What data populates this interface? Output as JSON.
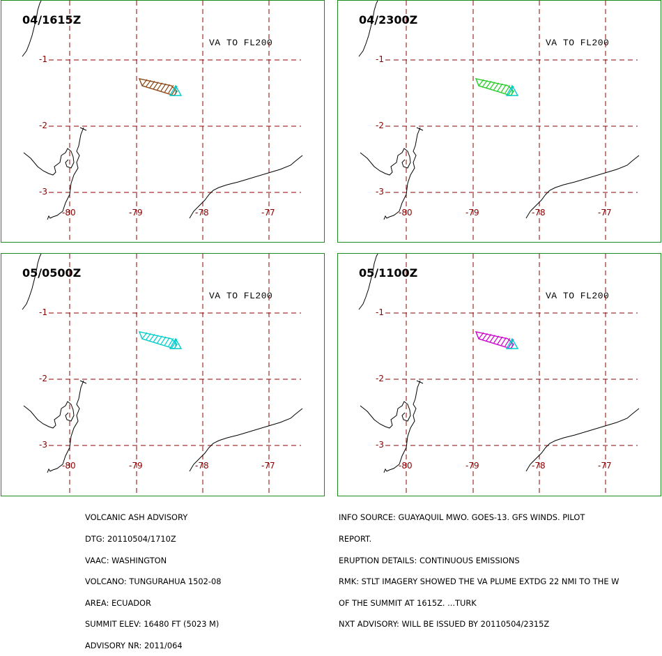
{
  "panels": [
    {
      "id": "p1",
      "time": "04/1615Z",
      "level": "VA TO FL200",
      "plume_color": "#8b4513",
      "vent_color": "#00cccc"
    },
    {
      "id": "p2",
      "time": "04/2300Z",
      "level": "VA TO FL200",
      "plume_color": "#22cc22",
      "vent_color": "#00cccc"
    },
    {
      "id": "p3",
      "time": "05/0500Z",
      "level": "VA TO FL200",
      "plume_color": "#00cccc",
      "vent_color": "#00cccc"
    },
    {
      "id": "p4",
      "time": "05/1100Z",
      "level": "VA TO FL200",
      "plume_color": "#cc00cc",
      "vent_color": "#00cccc"
    }
  ],
  "axes": {
    "lat_labels": [
      "-1",
      "-2",
      "-3"
    ],
    "lon_labels": [
      "-80",
      "-79",
      "-78",
      "-77"
    ],
    "grid_color": "#8b0000"
  },
  "advisory_left": [
    "VOLCANIC ASH ADVISORY",
    "DTG: 20110504/1710Z",
    "VAAC: WASHINGTON",
    "VOLCANO: TUNGURAHUA 1502-08",
    "AREA: ECUADOR",
    "SUMMIT ELEV: 16480 FT (5023 M)",
    "ADVISORY NR: 2011/064"
  ],
  "advisory_right": [
    "INFO SOURCE: GUAYAQUIL MWO. GOES-13. GFS WINDS. PILOT",
    "REPORT.",
    "ERUPTION DETAILS: CONTINUOUS EMISSIONS",
    "RMK: STLT IMAGERY SHOWED THE VA PLUME EXTDG 22 NMI TO THE W",
    "OF THE SUMMIT AT 1615Z. ...TURK",
    "NXT ADVISORY: WILL BE ISSUED BY 20110504/2315Z"
  ]
}
